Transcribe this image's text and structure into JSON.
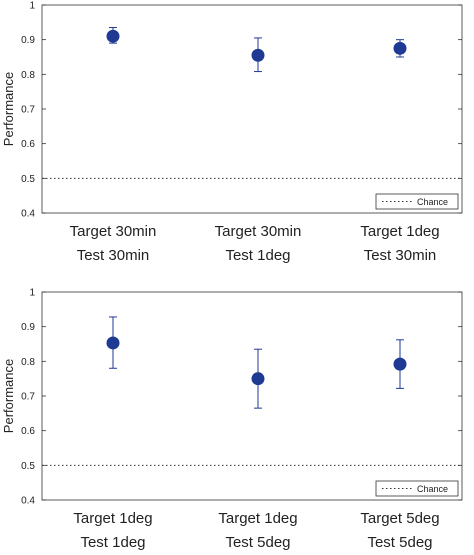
{
  "chart_data": [
    {
      "type": "scatter",
      "ylabel": "Performance",
      "ylim": [
        0.4,
        1
      ],
      "yticks": [
        "0.4",
        "0.5",
        "0.6",
        "0.7",
        "0.8",
        "0.9",
        "1"
      ],
      "categories": [
        {
          "line1": "Target 30min",
          "line2": "Test 30min"
        },
        {
          "line1": "Target 30min",
          "line2": "Test 1deg"
        },
        {
          "line1": "Target 1deg",
          "line2": "Test 30min"
        }
      ],
      "values": [
        0.91,
        0.855,
        0.875
      ],
      "error_low": [
        0.89,
        0.808,
        0.85
      ],
      "error_high": [
        0.935,
        0.905,
        0.9
      ],
      "chance_level": 0.5,
      "legend_label": "Chance",
      "legend_position": "bottom-right",
      "marker_color": "#1f3a93"
    },
    {
      "type": "scatter",
      "ylabel": "Performance",
      "ylim": [
        0.4,
        1
      ],
      "yticks": [
        "0.4",
        "0.5",
        "0.6",
        "0.7",
        "0.8",
        "0.9",
        "1"
      ],
      "categories": [
        {
          "line1": "Target 1deg",
          "line2": "Test 1deg"
        },
        {
          "line1": "Target 1deg",
          "line2": "Test 5deg"
        },
        {
          "line1": "Target 5deg",
          "line2": "Test 5deg"
        }
      ],
      "values": [
        0.853,
        0.75,
        0.792
      ],
      "error_low": [
        0.78,
        0.665,
        0.722
      ],
      "error_high": [
        0.928,
        0.835,
        0.862
      ],
      "chance_level": 0.5,
      "legend_label": "Chance",
      "legend_position": "bottom-right",
      "marker_color": "#1f3a93"
    }
  ]
}
